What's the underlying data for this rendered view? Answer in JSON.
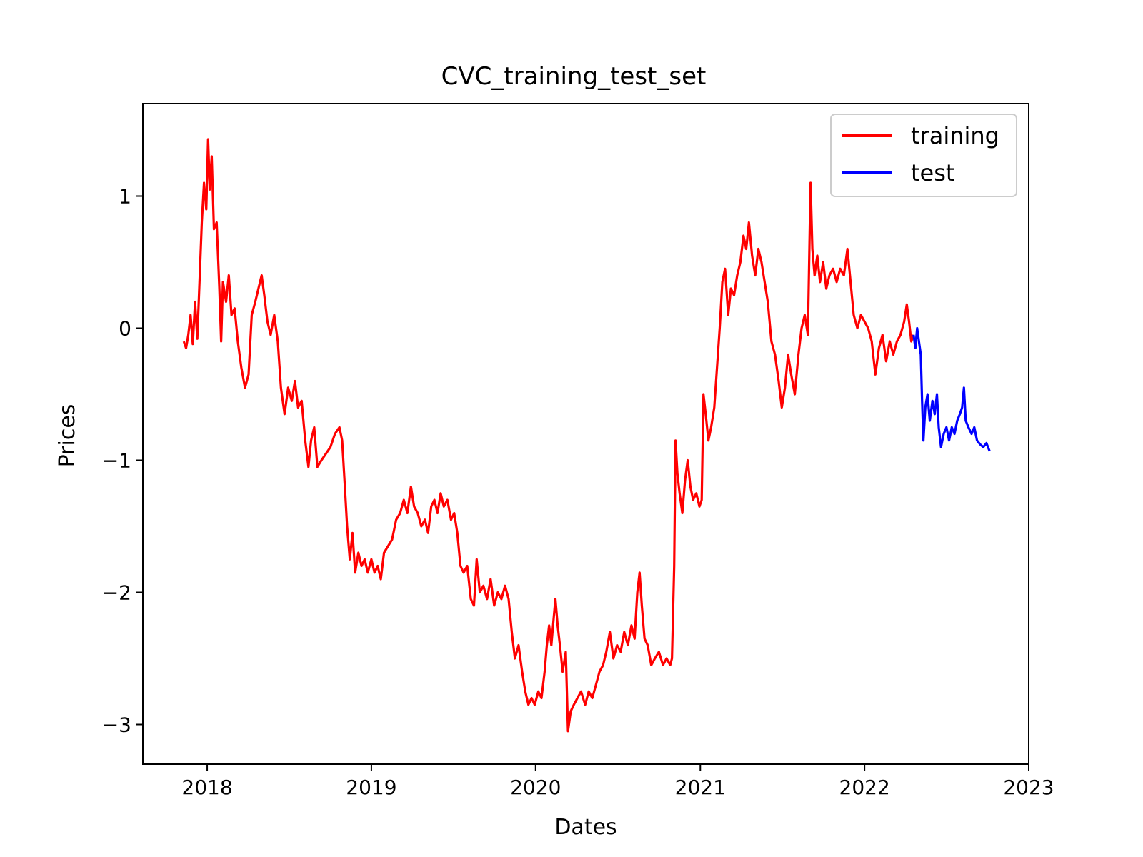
{
  "chart_data": {
    "type": "line",
    "title": "CVC_training_test_set",
    "xlabel": "Dates",
    "ylabel": "Prices",
    "xlim": [
      "2017-08-11",
      "2023-01-01"
    ],
    "ylim": [
      -3.3,
      1.7
    ],
    "x_ticks": [
      "2018-01-01",
      "2019-01-01",
      "2020-01-01",
      "2021-01-01",
      "2022-01-01",
      "2023-01-01"
    ],
    "x_tick_labels": [
      "2018",
      "2019",
      "2020",
      "2021",
      "2022",
      "2023"
    ],
    "y_ticks": [
      -3,
      -2,
      -1,
      0,
      1
    ],
    "y_tick_labels": [
      "−3",
      "−2",
      "−1",
      "0",
      "1"
    ],
    "grid": false,
    "legend": "top-right",
    "series": [
      {
        "name": "training",
        "color": "#ff0000",
        "points": [
          [
            "2017-11-10",
            -0.1
          ],
          [
            "2017-11-15",
            -0.15
          ],
          [
            "2017-11-20",
            -0.05
          ],
          [
            "2017-11-25",
            0.1
          ],
          [
            "2017-11-30",
            -0.12
          ],
          [
            "2017-12-05",
            0.2
          ],
          [
            "2017-12-10",
            -0.08
          ],
          [
            "2017-12-15",
            0.35
          ],
          [
            "2017-12-20",
            0.8
          ],
          [
            "2017-12-25",
            1.1
          ],
          [
            "2017-12-30",
            0.9
          ],
          [
            "2018-01-03",
            1.43
          ],
          [
            "2018-01-07",
            1.05
          ],
          [
            "2018-01-11",
            1.3
          ],
          [
            "2018-01-16",
            0.75
          ],
          [
            "2018-01-22",
            0.8
          ],
          [
            "2018-01-28",
            0.3
          ],
          [
            "2018-02-01",
            -0.1
          ],
          [
            "2018-02-05",
            0.35
          ],
          [
            "2018-02-12",
            0.2
          ],
          [
            "2018-02-18",
            0.4
          ],
          [
            "2018-02-24",
            0.1
          ],
          [
            "2018-03-03",
            0.15
          ],
          [
            "2018-03-10",
            -0.1
          ],
          [
            "2018-03-18",
            -0.3
          ],
          [
            "2018-03-26",
            -0.45
          ],
          [
            "2018-04-03",
            -0.35
          ],
          [
            "2018-04-10",
            0.1
          ],
          [
            "2018-04-18",
            0.2
          ],
          [
            "2018-04-25",
            0.3
          ],
          [
            "2018-05-02",
            0.4
          ],
          [
            "2018-05-08",
            0.25
          ],
          [
            "2018-05-15",
            0.05
          ],
          [
            "2018-05-22",
            -0.05
          ],
          [
            "2018-05-30",
            0.1
          ],
          [
            "2018-06-07",
            -0.1
          ],
          [
            "2018-06-14",
            -0.45
          ],
          [
            "2018-06-22",
            -0.65
          ],
          [
            "2018-06-30",
            -0.45
          ],
          [
            "2018-07-08",
            -0.55
          ],
          [
            "2018-07-15",
            -0.4
          ],
          [
            "2018-07-22",
            -0.6
          ],
          [
            "2018-07-30",
            -0.55
          ],
          [
            "2018-08-07",
            -0.85
          ],
          [
            "2018-08-14",
            -1.05
          ],
          [
            "2018-08-20",
            -0.85
          ],
          [
            "2018-08-27",
            -0.75
          ],
          [
            "2018-09-03",
            -1.05
          ],
          [
            "2018-09-12",
            -1.0
          ],
          [
            "2018-09-22",
            -0.95
          ],
          [
            "2018-10-02",
            -0.9
          ],
          [
            "2018-10-12",
            -0.8
          ],
          [
            "2018-10-22",
            -0.75
          ],
          [
            "2018-10-28",
            -0.85
          ],
          [
            "2018-11-03",
            -1.2
          ],
          [
            "2018-11-08",
            -1.5
          ],
          [
            "2018-11-14",
            -1.75
          ],
          [
            "2018-11-20",
            -1.55
          ],
          [
            "2018-11-26",
            -1.85
          ],
          [
            "2018-12-03",
            -1.7
          ],
          [
            "2018-12-10",
            -1.8
          ],
          [
            "2018-12-17",
            -1.75
          ],
          [
            "2018-12-24",
            -1.85
          ],
          [
            "2019-01-01",
            -1.75
          ],
          [
            "2019-01-08",
            -1.85
          ],
          [
            "2019-01-15",
            -1.8
          ],
          [
            "2019-01-22",
            -1.9
          ],
          [
            "2019-01-29",
            -1.7
          ],
          [
            "2019-02-07",
            -1.65
          ],
          [
            "2019-02-16",
            -1.6
          ],
          [
            "2019-02-25",
            -1.45
          ],
          [
            "2019-03-06",
            -1.4
          ],
          [
            "2019-03-14",
            -1.3
          ],
          [
            "2019-03-22",
            -1.4
          ],
          [
            "2019-03-30",
            -1.2
          ],
          [
            "2019-04-06",
            -1.35
          ],
          [
            "2019-04-14",
            -1.4
          ],
          [
            "2019-04-22",
            -1.5
          ],
          [
            "2019-04-30",
            -1.45
          ],
          [
            "2019-05-07",
            -1.55
          ],
          [
            "2019-05-14",
            -1.35
          ],
          [
            "2019-05-21",
            -1.3
          ],
          [
            "2019-05-28",
            -1.4
          ],
          [
            "2019-06-04",
            -1.25
          ],
          [
            "2019-06-11",
            -1.35
          ],
          [
            "2019-06-19",
            -1.3
          ],
          [
            "2019-06-27",
            -1.45
          ],
          [
            "2019-07-04",
            -1.4
          ],
          [
            "2019-07-11",
            -1.55
          ],
          [
            "2019-07-18",
            -1.8
          ],
          [
            "2019-07-25",
            -1.85
          ],
          [
            "2019-08-02",
            -1.8
          ],
          [
            "2019-08-10",
            -2.05
          ],
          [
            "2019-08-17",
            -2.1
          ],
          [
            "2019-08-23",
            -1.75
          ],
          [
            "2019-08-30",
            -2.0
          ],
          [
            "2019-09-07",
            -1.95
          ],
          [
            "2019-09-15",
            -2.05
          ],
          [
            "2019-09-23",
            -1.9
          ],
          [
            "2019-10-01",
            -2.1
          ],
          [
            "2019-10-09",
            -2.0
          ],
          [
            "2019-10-17",
            -2.05
          ],
          [
            "2019-10-25",
            -1.95
          ],
          [
            "2019-11-02",
            -2.05
          ],
          [
            "2019-11-09",
            -2.3
          ],
          [
            "2019-11-16",
            -2.5
          ],
          [
            "2019-11-24",
            -2.4
          ],
          [
            "2019-12-02",
            -2.6
          ],
          [
            "2019-12-09",
            -2.75
          ],
          [
            "2019-12-16",
            -2.85
          ],
          [
            "2019-12-23",
            -2.8
          ],
          [
            "2019-12-30",
            -2.85
          ],
          [
            "2020-01-07",
            -2.75
          ],
          [
            "2020-01-14",
            -2.8
          ],
          [
            "2020-01-21",
            -2.6
          ],
          [
            "2020-01-26",
            -2.4
          ],
          [
            "2020-01-31",
            -2.25
          ],
          [
            "2020-02-05",
            -2.4
          ],
          [
            "2020-02-10",
            -2.2
          ],
          [
            "2020-02-14",
            -2.05
          ],
          [
            "2020-02-19",
            -2.25
          ],
          [
            "2020-02-24",
            -2.4
          ],
          [
            "2020-03-01",
            -2.6
          ],
          [
            "2020-03-08",
            -2.45
          ],
          [
            "2020-03-13",
            -3.05
          ],
          [
            "2020-03-19",
            -2.9
          ],
          [
            "2020-03-26",
            -2.85
          ],
          [
            "2020-04-03",
            -2.8
          ],
          [
            "2020-04-11",
            -2.75
          ],
          [
            "2020-04-20",
            -2.85
          ],
          [
            "2020-04-28",
            -2.75
          ],
          [
            "2020-05-06",
            -2.8
          ],
          [
            "2020-05-14",
            -2.7
          ],
          [
            "2020-05-22",
            -2.6
          ],
          [
            "2020-05-30",
            -2.55
          ],
          [
            "2020-06-06",
            -2.45
          ],
          [
            "2020-06-14",
            -2.3
          ],
          [
            "2020-06-22",
            -2.5
          ],
          [
            "2020-06-30",
            -2.4
          ],
          [
            "2020-07-08",
            -2.45
          ],
          [
            "2020-07-16",
            -2.3
          ],
          [
            "2020-07-24",
            -2.4
          ],
          [
            "2020-08-01",
            -2.25
          ],
          [
            "2020-08-08",
            -2.35
          ],
          [
            "2020-08-14",
            -2.0
          ],
          [
            "2020-08-19",
            -1.85
          ],
          [
            "2020-08-24",
            -2.1
          ],
          [
            "2020-08-30",
            -2.35
          ],
          [
            "2020-09-06",
            -2.4
          ],
          [
            "2020-09-14",
            -2.55
          ],
          [
            "2020-09-22",
            -2.5
          ],
          [
            "2020-10-01",
            -2.45
          ],
          [
            "2020-10-10",
            -2.55
          ],
          [
            "2020-10-18",
            -2.5
          ],
          [
            "2020-10-26",
            -2.55
          ],
          [
            "2020-10-30",
            -2.5
          ],
          [
            "2020-11-04",
            -1.8
          ],
          [
            "2020-11-07",
            -0.85
          ],
          [
            "2020-11-11",
            -1.1
          ],
          [
            "2020-11-16",
            -1.25
          ],
          [
            "2020-11-22",
            -1.4
          ],
          [
            "2020-11-28",
            -1.15
          ],
          [
            "2020-12-04",
            -1.0
          ],
          [
            "2020-12-10",
            -1.2
          ],
          [
            "2020-12-16",
            -1.3
          ],
          [
            "2020-12-23",
            -1.25
          ],
          [
            "2020-12-30",
            -1.35
          ],
          [
            "2021-01-04",
            -1.3
          ],
          [
            "2021-01-08",
            -0.5
          ],
          [
            "2021-01-13",
            -0.65
          ],
          [
            "2021-01-19",
            -0.85
          ],
          [
            "2021-01-25",
            -0.75
          ],
          [
            "2021-02-01",
            -0.6
          ],
          [
            "2021-02-07",
            -0.3
          ],
          [
            "2021-02-13",
            0.0
          ],
          [
            "2021-02-19",
            0.35
          ],
          [
            "2021-02-25",
            0.45
          ],
          [
            "2021-03-04",
            0.1
          ],
          [
            "2021-03-10",
            0.3
          ],
          [
            "2021-03-17",
            0.25
          ],
          [
            "2021-03-24",
            0.4
          ],
          [
            "2021-03-31",
            0.5
          ],
          [
            "2021-04-07",
            0.7
          ],
          [
            "2021-04-13",
            0.6
          ],
          [
            "2021-04-19",
            0.8
          ],
          [
            "2021-04-26",
            0.55
          ],
          [
            "2021-05-03",
            0.4
          ],
          [
            "2021-05-10",
            0.6
          ],
          [
            "2021-05-17",
            0.5
          ],
          [
            "2021-05-24",
            0.35
          ],
          [
            "2021-05-31",
            0.2
          ],
          [
            "2021-06-08",
            -0.1
          ],
          [
            "2021-06-16",
            -0.2
          ],
          [
            "2021-06-24",
            -0.4
          ],
          [
            "2021-07-01",
            -0.6
          ],
          [
            "2021-07-08",
            -0.45
          ],
          [
            "2021-07-15",
            -0.2
          ],
          [
            "2021-07-22",
            -0.35
          ],
          [
            "2021-07-30",
            -0.5
          ],
          [
            "2021-08-07",
            -0.2
          ],
          [
            "2021-08-14",
            0.0
          ],
          [
            "2021-08-21",
            0.1
          ],
          [
            "2021-08-28",
            -0.05
          ],
          [
            "2021-09-03",
            1.1
          ],
          [
            "2021-09-07",
            0.6
          ],
          [
            "2021-09-12",
            0.4
          ],
          [
            "2021-09-18",
            0.55
          ],
          [
            "2021-09-24",
            0.35
          ],
          [
            "2021-10-01",
            0.5
          ],
          [
            "2021-10-08",
            0.3
          ],
          [
            "2021-10-15",
            0.4
          ],
          [
            "2021-10-23",
            0.45
          ],
          [
            "2021-10-31",
            0.35
          ],
          [
            "2021-11-08",
            0.45
          ],
          [
            "2021-11-16",
            0.4
          ],
          [
            "2021-11-24",
            0.6
          ],
          [
            "2021-12-01",
            0.35
          ],
          [
            "2021-12-08",
            0.1
          ],
          [
            "2021-12-16",
            0.0
          ],
          [
            "2021-12-24",
            0.1
          ],
          [
            "2022-01-01",
            0.05
          ],
          [
            "2022-01-09",
            0.0
          ],
          [
            "2022-01-17",
            -0.1
          ],
          [
            "2022-01-25",
            -0.35
          ],
          [
            "2022-02-02",
            -0.15
          ],
          [
            "2022-02-10",
            -0.05
          ],
          [
            "2022-02-18",
            -0.25
          ],
          [
            "2022-02-26",
            -0.1
          ],
          [
            "2022-03-06",
            -0.2
          ],
          [
            "2022-03-14",
            -0.1
          ],
          [
            "2022-03-22",
            -0.05
          ],
          [
            "2022-03-30",
            0.05
          ],
          [
            "2022-04-05",
            0.18
          ],
          [
            "2022-04-10",
            0.05
          ],
          [
            "2022-04-15",
            -0.1
          ],
          [
            "2022-04-20",
            -0.05
          ]
        ]
      },
      {
        "name": "test",
        "color": "#0000ff",
        "points": [
          [
            "2022-04-20",
            -0.05
          ],
          [
            "2022-04-24",
            -0.15
          ],
          [
            "2022-04-28",
            0.0
          ],
          [
            "2022-05-02",
            -0.1
          ],
          [
            "2022-05-06",
            -0.2
          ],
          [
            "2022-05-09",
            -0.55
          ],
          [
            "2022-05-12",
            -0.85
          ],
          [
            "2022-05-16",
            -0.6
          ],
          [
            "2022-05-21",
            -0.5
          ],
          [
            "2022-05-26",
            -0.7
          ],
          [
            "2022-06-01",
            -0.55
          ],
          [
            "2022-06-06",
            -0.65
          ],
          [
            "2022-06-11",
            -0.5
          ],
          [
            "2022-06-15",
            -0.75
          ],
          [
            "2022-06-20",
            -0.9
          ],
          [
            "2022-06-26",
            -0.8
          ],
          [
            "2022-07-02",
            -0.75
          ],
          [
            "2022-07-08",
            -0.85
          ],
          [
            "2022-07-14",
            -0.75
          ],
          [
            "2022-07-20",
            -0.8
          ],
          [
            "2022-07-26",
            -0.7
          ],
          [
            "2022-08-01",
            -0.65
          ],
          [
            "2022-08-06",
            -0.6
          ],
          [
            "2022-08-10",
            -0.45
          ],
          [
            "2022-08-14",
            -0.7
          ],
          [
            "2022-08-20",
            -0.75
          ],
          [
            "2022-08-27",
            -0.8
          ],
          [
            "2022-09-02",
            -0.75
          ],
          [
            "2022-09-08",
            -0.85
          ],
          [
            "2022-09-15",
            -0.88
          ],
          [
            "2022-09-22",
            -0.9
          ],
          [
            "2022-09-29",
            -0.87
          ],
          [
            "2022-10-06",
            -0.93
          ]
        ]
      }
    ]
  }
}
